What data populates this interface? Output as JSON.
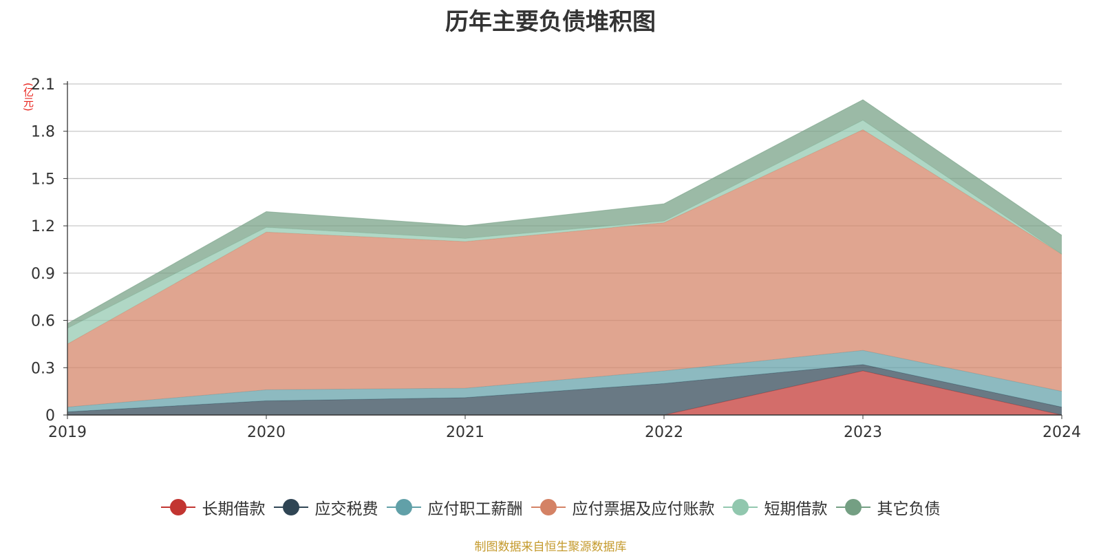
{
  "title": "历年主要负债堆积图",
  "unit_label": "(亿元)",
  "source": "制图数据来自恒生聚源数据库",
  "chart_data": {
    "type": "area",
    "stacked": true,
    "title": "历年主要负债堆积图",
    "ylabel": "(亿元)",
    "xlabel": "",
    "x": [
      "2019",
      "2020",
      "2021",
      "2022",
      "2023",
      "2024"
    ],
    "ylim": [
      0,
      2.1
    ],
    "yticks": [
      "0",
      "0.3",
      "0.6",
      "0.9",
      "1.2",
      "1.5",
      "1.8",
      "2.1"
    ],
    "grid": true,
    "legend_position": "bottom",
    "series": [
      {
        "name": "长期借款",
        "color": "#c23531",
        "values": [
          0,
          0,
          0,
          0,
          0.28,
          0
        ]
      },
      {
        "name": "应交税费",
        "color": "#2f4554",
        "values": [
          0.02,
          0.09,
          0.11,
          0.2,
          0.04,
          0.05
        ]
      },
      {
        "name": "应付职工薪酬",
        "color": "#61a0a8",
        "values": [
          0.03,
          0.07,
          0.06,
          0.08,
          0.09,
          0.1
        ]
      },
      {
        "name": "应付票据及应付账款",
        "color": "#d48265",
        "values": [
          0.4,
          1.0,
          0.93,
          0.94,
          1.4,
          0.87
        ]
      },
      {
        "name": "短期借款",
        "color": "#91c7ae",
        "values": [
          0.1,
          0.03,
          0.02,
          0.01,
          0.06,
          0.0
        ]
      },
      {
        "name": "其它负债",
        "color": "#749f83",
        "values": [
          0.03,
          0.1,
          0.08,
          0.11,
          0.13,
          0.12
        ]
      }
    ]
  }
}
